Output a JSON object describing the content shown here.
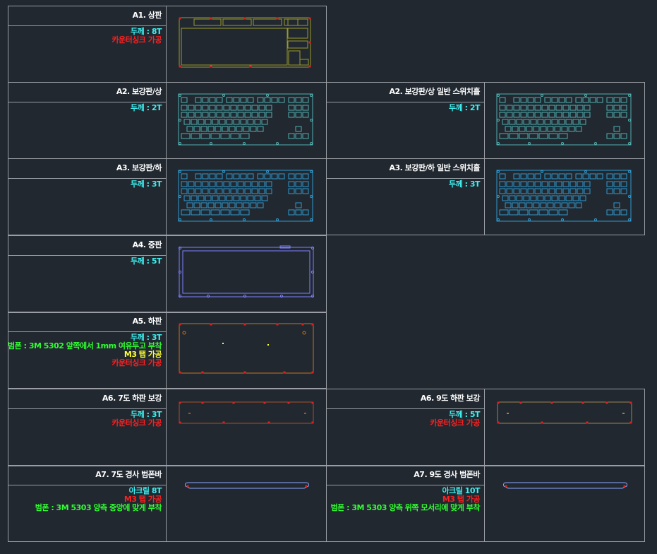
{
  "parts": [
    {
      "id": "a1",
      "title": "A1. 상판",
      "notes": [
        {
          "text": "두께 : 8T",
          "color": "cyan"
        },
        {
          "text": "카운터싱크 가공",
          "color": "red"
        }
      ],
      "drawing": "top-plate",
      "stroke": "#9c9a2c"
    },
    {
      "id": "a2l",
      "title": "A2. 보강판/상",
      "notes": [
        {
          "text": "두께 : 2T",
          "color": "cyan"
        }
      ],
      "drawing": "keyboard-plate",
      "stroke": "#4fb0b0"
    },
    {
      "id": "a2r",
      "title": "A2. 보강판/상 일반 스위치홀",
      "notes": [
        {
          "text": "두께 : 2T",
          "color": "cyan"
        }
      ],
      "drawing": "keyboard-plate",
      "stroke": "#4fb0b0"
    },
    {
      "id": "a3l",
      "title": "A3. 보강판/하",
      "notes": [
        {
          "text": "두께 : 3T",
          "color": "cyan"
        }
      ],
      "drawing": "keyboard-plate",
      "stroke": "#2f9ad0"
    },
    {
      "id": "a3r",
      "title": "A3. 보강판/하 일반 스위치홀",
      "notes": [
        {
          "text": "두께 : 3T",
          "color": "cyan"
        }
      ],
      "drawing": "keyboard-plate",
      "stroke": "#2f9ad0"
    },
    {
      "id": "a4",
      "title": "A4. 중판",
      "notes": [
        {
          "text": "두께 : 5T",
          "color": "cyan"
        }
      ],
      "drawing": "middle-frame",
      "stroke": "#8080ff"
    },
    {
      "id": "a5",
      "title": "A5. 하판",
      "notes": [
        {
          "text": "두께 : 3T",
          "color": "cyan"
        },
        {
          "text": "범폰 : 3M 5302 앞쪽에서 1mm 여유두고 부착",
          "color": "green"
        },
        {
          "text": "M3 탭 가공",
          "color": "yellow"
        },
        {
          "text": "카운터싱크 가공",
          "color": "red"
        }
      ],
      "drawing": "bottom-plate",
      "stroke": "#c8741c"
    },
    {
      "id": "a6l",
      "title": "A6. 7도 하판 보강",
      "notes": [
        {
          "text": "두께 : 3T",
          "color": "cyan"
        },
        {
          "text": "카운터싱크 가공",
          "color": "red"
        }
      ],
      "drawing": "reinforce-bar",
      "stroke": "#a8502a"
    },
    {
      "id": "a6r",
      "title": "A6. 9도 하판 보강",
      "notes": [
        {
          "text": "두께 : 5T",
          "color": "cyan"
        },
        {
          "text": "카운터싱크 가공",
          "color": "red"
        }
      ],
      "drawing": "reinforce-bar",
      "stroke": "#9a8450"
    },
    {
      "id": "a7l",
      "title": "A7. 7도 경사 범폰바",
      "notes": [
        {
          "text": "아크릴 8T",
          "color": "cyan"
        },
        {
          "text": "M3 탭 가공",
          "color": "red"
        },
        {
          "text": "범폰 : 3M 5303 양측 중앙에 맞게 부착",
          "color": "green"
        }
      ],
      "drawing": "bumpon-bar",
      "stroke": "#8aa8ff"
    },
    {
      "id": "a7r",
      "title": "A7. 9도 경사 범폰바",
      "notes": [
        {
          "text": "아크릴 10T",
          "color": "cyan"
        },
        {
          "text": "M3 탭 가공",
          "color": "red"
        },
        {
          "text": "범폰 : 3M 5303 양측 위쪽 모서리에 맞게 부착",
          "color": "green"
        }
      ],
      "drawing": "bumpon-bar",
      "stroke": "#8aa8ff"
    }
  ],
  "colors": {
    "background": "#212830",
    "grid": "#9a9ea4",
    "hole": "#e02020"
  }
}
